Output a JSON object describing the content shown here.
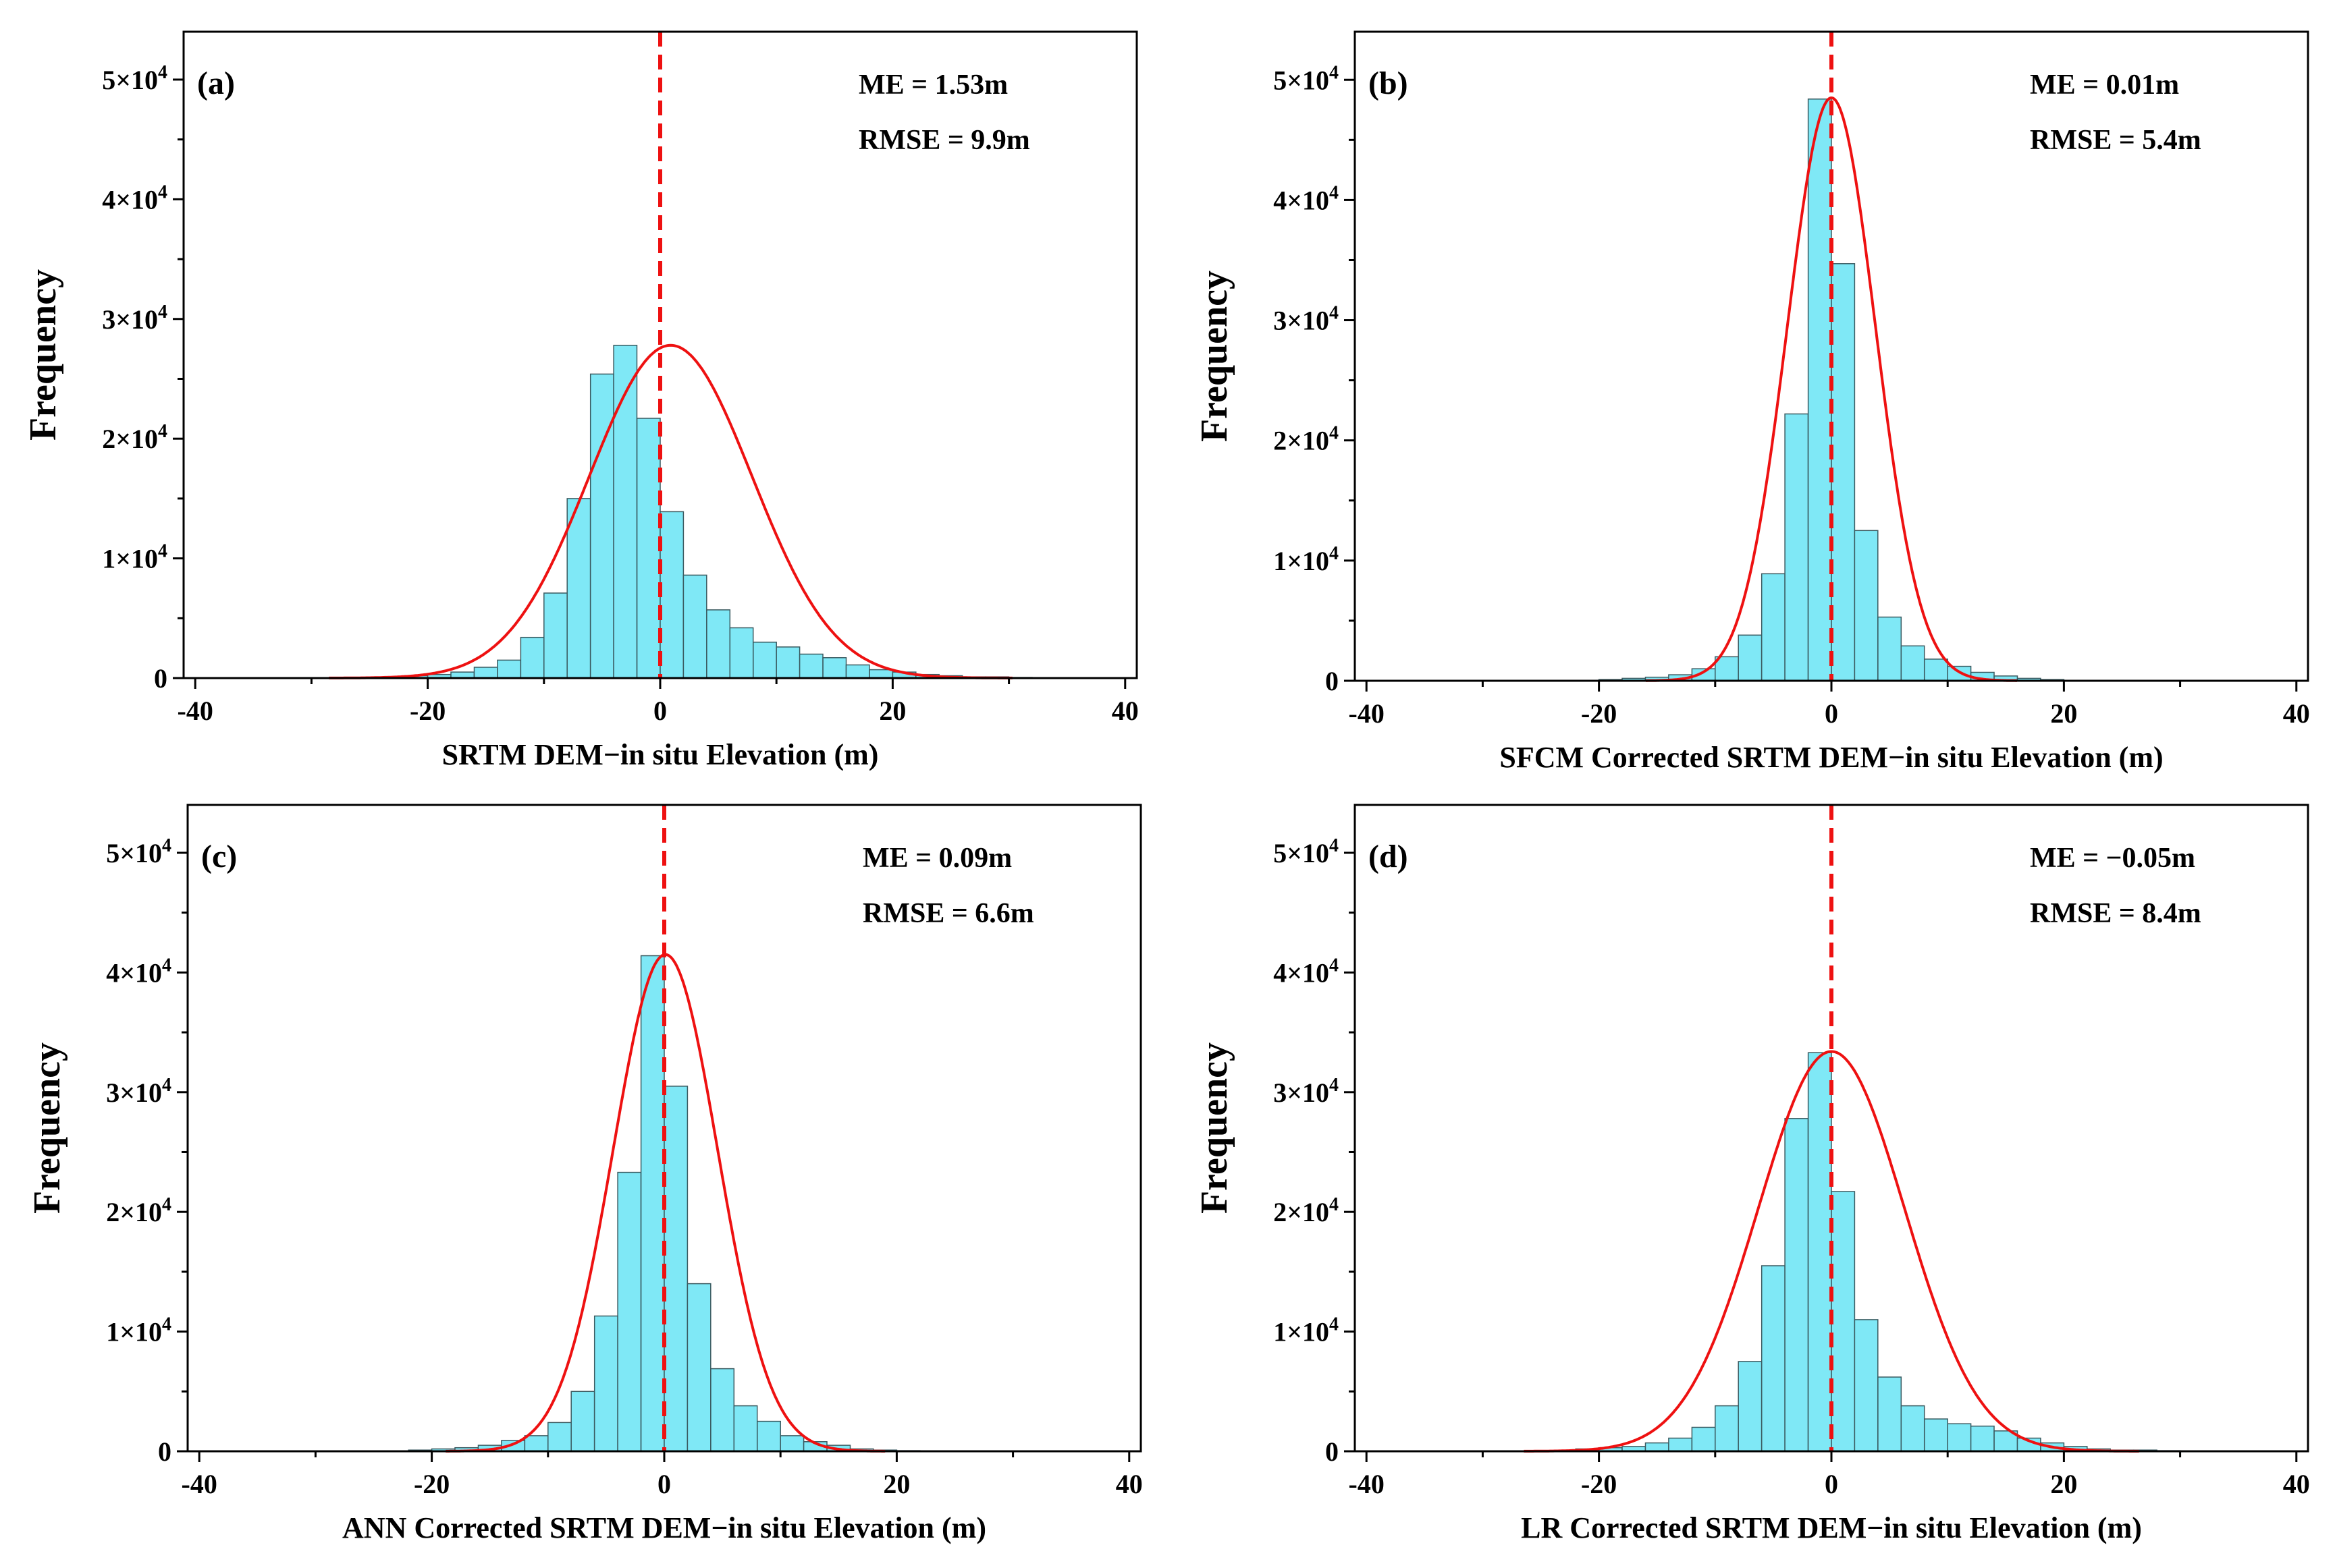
{
  "figure_title": "",
  "colors": {
    "bar_fill": "#7fe8f6",
    "bar_stroke": "#3a5a60",
    "fit_curve": "#ee1111",
    "mean_line": "#ee1111",
    "axis": "#000000"
  },
  "chart_data": [
    {
      "type": "bar",
      "panel_label": "(a)",
      "xlabel": "SRTM DEM−in situ Elevation (m)",
      "ylabel": "Frequency",
      "stats": {
        "me": "ME = 1.53m",
        "rmse": "RMSE = 9.9m"
      },
      "xlim": [
        -41,
        41
      ],
      "ylim": [
        0,
        54000
      ],
      "xticks": [
        -40,
        -20,
        0,
        20,
        40
      ],
      "yticks": [
        0,
        10000,
        20000,
        30000,
        40000,
        50000
      ],
      "ytick_labels": {
        "zero": "0",
        "base": "×10",
        "exp": "4",
        "mult": [
          "",
          "1",
          "2",
          "3",
          "4",
          "5"
        ]
      },
      "bin_width": 2,
      "bin_left_edges": [
        -22,
        -20,
        -18,
        -16,
        -14,
        -12,
        -10,
        -8,
        -6,
        -4,
        -2,
        0,
        2,
        4,
        6,
        8,
        10,
        12,
        14,
        16,
        18,
        20,
        22,
        24,
        26,
        28,
        30,
        32,
        34
      ],
      "values": [
        200,
        300,
        500,
        900,
        1500,
        3400,
        7100,
        15000,
        25400,
        27800,
        21700,
        13900,
        8600,
        5700,
        4200,
        3000,
        2600,
        2000,
        1700,
        1100,
        700,
        500,
        300,
        200,
        100,
        100,
        50,
        30,
        20
      ],
      "mean_line_x": 0,
      "fit": {
        "mu": 0.9,
        "sigma": 7.0,
        "peak": 27800
      }
    },
    {
      "type": "bar",
      "panel_label": "(b)",
      "xlabel": "SFCM Corrected SRTM DEM−in situ Elevation (m)",
      "ylabel": "Frequency",
      "stats": {
        "me": "ME = 0.01m",
        "rmse": "RMSE = 5.4m"
      },
      "xlim": [
        -41,
        41
      ],
      "ylim": [
        0,
        54000
      ],
      "xticks": [
        -40,
        -20,
        0,
        20,
        40
      ],
      "yticks": [
        0,
        10000,
        20000,
        30000,
        40000,
        50000
      ],
      "ytick_labels": {
        "zero": "0",
        "base": "×10",
        "exp": "4",
        "mult": [
          "",
          "1",
          "2",
          "3",
          "4",
          "5"
        ]
      },
      "bin_width": 2,
      "bin_left_edges": [
        -20,
        -18,
        -16,
        -14,
        -12,
        -10,
        -8,
        -6,
        -4,
        -2,
        0,
        2,
        4,
        6,
        8,
        10,
        12,
        14,
        16,
        18
      ],
      "values": [
        100,
        200,
        300,
        500,
        1000,
        2000,
        3800,
        8900,
        22200,
        48400,
        34700,
        12500,
        5300,
        2900,
        1800,
        1200,
        700,
        400,
        200,
        100
      ],
      "mean_line_x": 0,
      "fit": {
        "mu": 0,
        "sigma": 3.8,
        "peak": 48500
      }
    },
    {
      "type": "bar",
      "panel_label": "(c)",
      "xlabel": "ANN Corrected SRTM DEM−in situ Elevation (m)",
      "ylabel": "Frequency",
      "stats": {
        "me": "ME = 0.09m",
        "rmse": "RMSE = 6.6m"
      },
      "xlim": [
        -41,
        41
      ],
      "ylim": [
        0,
        54000
      ],
      "xticks": [
        -40,
        -20,
        0,
        20,
        40
      ],
      "yticks": [
        0,
        10000,
        20000,
        30000,
        40000,
        50000
      ],
      "ytick_labels": {
        "zero": "0",
        "base": "×10",
        "exp": "4",
        "mult": [
          "",
          "1",
          "2",
          "3",
          "4",
          "5"
        ]
      },
      "bin_width": 2,
      "bin_left_edges": [
        -22,
        -20,
        -18,
        -16,
        -14,
        -12,
        -10,
        -8,
        -6,
        -4,
        -2,
        0,
        2,
        4,
        6,
        8,
        10,
        12,
        14,
        16,
        18,
        20
      ],
      "values": [
        100,
        200,
        300,
        500,
        900,
        1300,
        2400,
        5000,
        11300,
        23300,
        41400,
        30500,
        14000,
        6900,
        3800,
        2500,
        1300,
        800,
        500,
        200,
        100,
        50
      ],
      "mean_line_x": 0,
      "fit": {
        "mu": 0.1,
        "sigma": 4.5,
        "peak": 41500
      }
    },
    {
      "type": "bar",
      "panel_label": "(d)",
      "xlabel": "LR Corrected SRTM DEM−in situ Elevation (m)",
      "ylabel": "Frequency",
      "stats": {
        "me": "ME = −0.05m",
        "rmse": "RMSE = 8.4m"
      },
      "xlim": [
        -41,
        41
      ],
      "ylim": [
        0,
        54000
      ],
      "xticks": [
        -40,
        -20,
        0,
        20,
        40
      ],
      "yticks": [
        0,
        10000,
        20000,
        30000,
        40000,
        50000
      ],
      "ytick_labels": {
        "zero": "0",
        "base": "×10",
        "exp": "4",
        "mult": [
          "",
          "1",
          "2",
          "3",
          "4",
          "5"
        ]
      },
      "bin_width": 2,
      "bin_left_edges": [
        -22,
        -20,
        -18,
        -16,
        -14,
        -12,
        -10,
        -8,
        -6,
        -4,
        -2,
        0,
        2,
        4,
        6,
        8,
        10,
        12,
        14,
        16,
        18,
        20,
        22,
        24,
        26,
        28,
        30
      ],
      "values": [
        200,
        300,
        400,
        700,
        1100,
        2000,
        3800,
        7500,
        15500,
        27800,
        33300,
        21700,
        11000,
        6200,
        3800,
        2700,
        2300,
        2100,
        1700,
        1100,
        700,
        400,
        200,
        100,
        100,
        50,
        30
      ],
      "mean_line_x": 0,
      "fit": {
        "mu": 0,
        "sigma": 6.3,
        "peak": 33400
      }
    }
  ]
}
